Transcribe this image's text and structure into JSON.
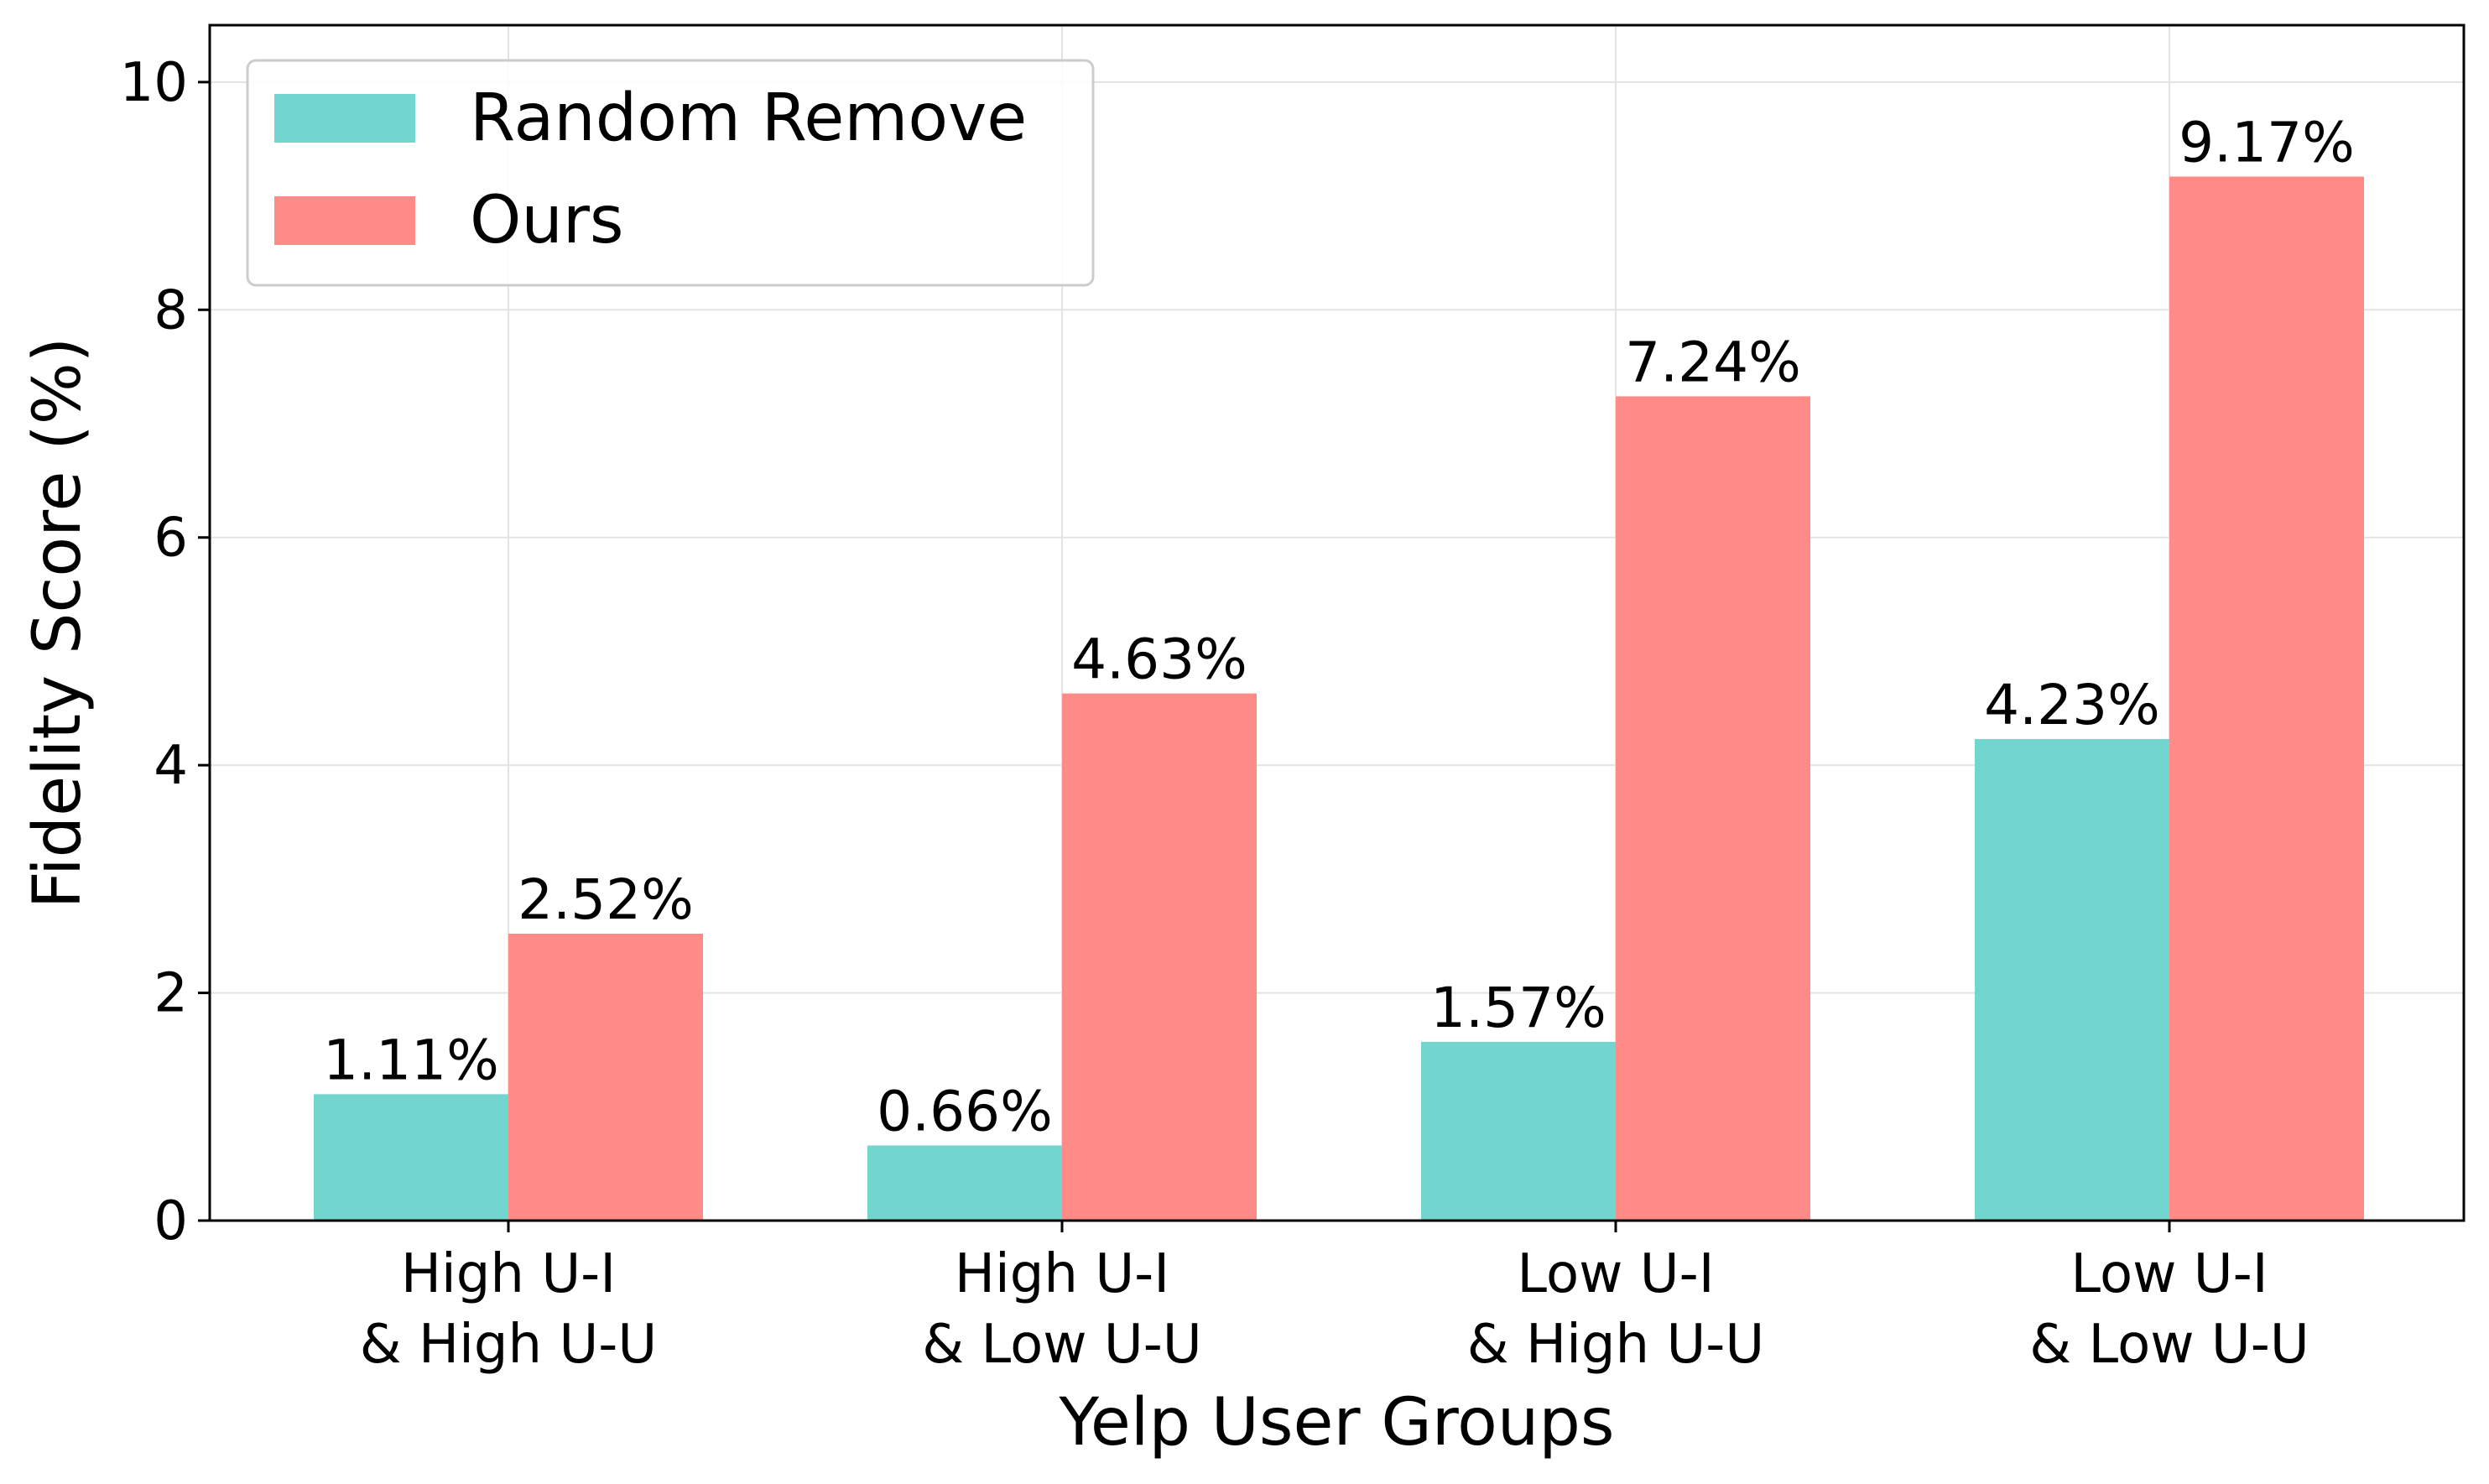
{
  "chart_data": {
    "type": "bar",
    "xlabel": "Yelp User Groups",
    "ylabel": "Fidelity Score (%)",
    "ylim": [
      0,
      10.5
    ],
    "yticks": [
      0,
      2,
      4,
      6,
      8,
      10
    ],
    "grid": true,
    "legend_position": "top-left",
    "categories": [
      [
        "High U-I",
        "& High U-U"
      ],
      [
        "High U-I",
        "& Low U-U"
      ],
      [
        "Low U-I",
        "& High U-U"
      ],
      [
        "Low U-I",
        "& Low U-U"
      ]
    ],
    "series": [
      {
        "name": "Random Remove",
        "color": "#72d6ce",
        "values": [
          1.11,
          0.66,
          1.57,
          4.23
        ],
        "labels": [
          "1.11%",
          "0.66%",
          "1.57%",
          "4.23%"
        ]
      },
      {
        "name": "Ours",
        "color": "#ff8b89",
        "values": [
          2.52,
          4.63,
          7.24,
          9.17
        ],
        "labels": [
          "2.52%",
          "4.63%",
          "7.24%",
          "9.17%"
        ]
      }
    ]
  }
}
